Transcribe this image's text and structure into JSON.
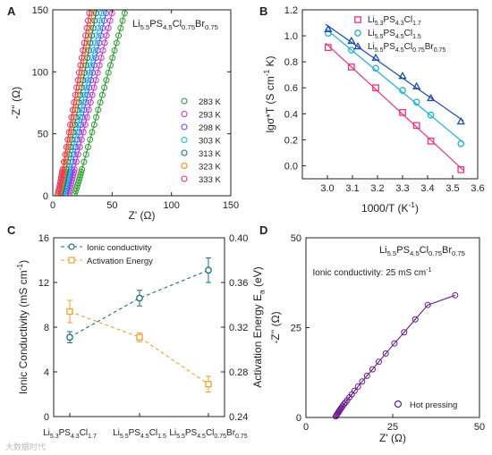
{
  "chart_data": [
    {
      "panel": "A",
      "type": "scatter",
      "xlabel": "Z' (Ω)",
      "ylabel": "-Z'' (Ω)",
      "xlim": [
        0,
        150
      ],
      "ylim": [
        0,
        150
      ],
      "xticks": [
        "0",
        "50",
        "100",
        "150"
      ],
      "yticks": [
        "0",
        "50",
        "100",
        "150"
      ],
      "annotation": "Li5.5PS4.5Cl0.75Br0.75",
      "legend_position": "center-right",
      "series": [
        {
          "name": "283 K",
          "color": "#2e9e33",
          "x0": 18.5,
          "slope": 3.5
        },
        {
          "name": "293 K",
          "color": "#cc33cc",
          "x0": 13.0,
          "slope": 4.0
        },
        {
          "name": "298 K",
          "color": "#5555ee",
          "x0": 10.5,
          "slope": 4.3
        },
        {
          "name": "303 K",
          "color": "#22b8e0",
          "x0": 9.0,
          "slope": 4.6
        },
        {
          "name": "313 K",
          "color": "#147a7a",
          "x0": 7.0,
          "slope": 5.0
        },
        {
          "name": "323 K",
          "color": "#f08a00",
          "x0": 5.5,
          "slope": 5.3
        },
        {
          "name": "333 K",
          "color": "#e8336e",
          "x0": 4.5,
          "slope": 5.6
        }
      ]
    },
    {
      "panel": "B",
      "type": "scatter",
      "xlabel": "1000/T (K-1)",
      "ylabel": "lgσ*T (S cm-1 K)",
      "xlim": [
        2.9,
        3.6
      ],
      "ylim": [
        -0.1,
        1.2
      ],
      "xticks": [
        "3.0",
        "3.1",
        "3.2",
        "3.3",
        "3.4",
        "3.5",
        "3.6"
      ],
      "yticks": [
        "0.0",
        "0.2",
        "0.4",
        "0.6",
        "0.8",
        "1.0",
        "1.2"
      ],
      "legend_position": "top-right",
      "x": [
        3.003,
        3.096,
        3.193,
        3.3,
        3.356,
        3.413,
        3.533
      ],
      "series": [
        {
          "name": "Li5.3PS4.3Cl1.7",
          "color": "#e8337a",
          "marker": "square",
          "values": [
            0.91,
            0.76,
            0.6,
            0.41,
            0.31,
            0.19,
            -0.03
          ]
        },
        {
          "name": "Li5.5PS4.5Cl1.5",
          "color": "#1fb0d8",
          "marker": "circle",
          "values": [
            1.02,
            0.89,
            0.75,
            0.58,
            0.49,
            0.39,
            0.17
          ]
        },
        {
          "name": "Li5.5PS4.5Cl0.75Br0.75",
          "color": "#1f4aa8",
          "marker": "triangle",
          "values": [
            1.05,
            0.96,
            0.83,
            0.69,
            0.61,
            0.52,
            0.34
          ]
        }
      ]
    },
    {
      "panel": "C",
      "type": "line",
      "ylabel": "Ionic Conductivity (mS cm-1)",
      "ylabel_right": "Activation Energy Ea (eV)",
      "ylim": [
        0,
        16
      ],
      "ylim_right": [
        0.24,
        0.4
      ],
      "yticks": [
        "0",
        "4",
        "8",
        "12",
        "16"
      ],
      "yticks_right": [
        "0.24",
        "0.28",
        "0.32",
        "0.36",
        "0.40"
      ],
      "categories": [
        "Li5.3PS4.3Cl1.7",
        "Li5.5PS4.5Cl1.5",
        "Li5.5PS4.5Cl0.75Br0.75"
      ],
      "legend_position": "top-left",
      "series": [
        {
          "name": "Ionic conductivity",
          "color": "#1b6e80",
          "axis": "left",
          "values": [
            7.1,
            10.6,
            13.1
          ],
          "errors": [
            0.5,
            0.7,
            1.1
          ]
        },
        {
          "name": "Activation Energy",
          "color": "#f0a030",
          "axis": "right",
          "values": [
            0.334,
            0.311,
            0.269
          ],
          "errors": [
            0.01,
            0.004,
            0.007
          ]
        }
      ]
    },
    {
      "panel": "D",
      "type": "scatter",
      "xlabel": "Z' (Ω)",
      "ylabel": "-Z'' (Ω)",
      "xlim": [
        0,
        50
      ],
      "ylim": [
        0,
        50
      ],
      "xticks": [
        "0",
        "25",
        "50"
      ],
      "yticks": [
        "0",
        "25",
        "50"
      ],
      "annotation": "Li5.5PS4.5Cl0.75Br0.75",
      "annotation2": "Ionic conductivity: 25 mS cm-1",
      "legend_position": "bottom-right",
      "series": [
        {
          "name": "Hot pressing",
          "color": "#6a1b8a",
          "x": [
            8.6,
            8.8,
            9.0,
            9.2,
            9.4,
            9.6,
            9.8,
            10.0,
            10.3,
            10.6,
            11.0,
            11.4,
            11.9,
            12.5,
            13.2,
            14.0,
            15.0,
            16.2,
            17.6,
            19.2,
            21.0,
            23.0,
            25.5,
            28.3,
            31.5,
            35.1,
            43.0
          ],
          "values": [
            0.3,
            0.6,
            0.9,
            1.2,
            1.5,
            1.8,
            2.1,
            2.4,
            2.8,
            3.2,
            3.7,
            4.2,
            4.8,
            5.6,
            6.4,
            7.4,
            8.6,
            10.0,
            11.6,
            13.4,
            15.5,
            17.8,
            20.6,
            23.7,
            27.3,
            31.3,
            34.0
          ]
        }
      ]
    }
  ],
  "panels": {
    "a": {
      "letter": "A",
      "title_parts": [
        "Li",
        "5.5",
        "PS",
        "4.5",
        "Cl",
        "0.75",
        "Br",
        "0.75"
      ]
    },
    "b": {
      "letter": "B"
    },
    "c": {
      "letter": "C"
    },
    "d": {
      "letter": "D",
      "title_parts": [
        "Li",
        "5.5",
        "PS",
        "4.5",
        "Cl",
        "0.75",
        "Br",
        "0.75"
      ],
      "note": "Ionic conductivity: 25 mS cm",
      "note_sup": "-1"
    }
  },
  "labels": {
    "a_ylabel": "-Z'' (Ω)",
    "a_xlabel": "Z' (Ω)",
    "b_ylabel_main": "lgσ*T (S cm",
    "b_ylabel_sup": "-1",
    "b_ylabel_tail": " K)",
    "b_xlabel_main": "1000/T (K",
    "b_xlabel_sup": "-1",
    "b_xlabel_tail": ")",
    "c_ylabel_main": "Ionic Conductivity (mS cm",
    "c_ylabel_sup": "-1",
    "c_ylabel_tail": ")",
    "c_ylabel_right_main": "Activation Energy E",
    "c_ylabel_right_sub": "a",
    "c_ylabel_right_tail": " (eV)",
    "d_ylabel": "-Z'' (Ω)",
    "d_xlabel": "Z' (Ω)"
  },
  "legend_b": [
    {
      "parts": [
        "Li",
        "5.3",
        "PS",
        "4.3",
        "Cl",
        "1.7"
      ]
    },
    {
      "parts": [
        "Li",
        "5.5",
        "PS",
        "4.5",
        "Cl",
        "1.5"
      ]
    },
    {
      "parts": [
        "Li",
        "5.5",
        "PS",
        "4.5",
        "Cl",
        "0.75",
        "Br",
        "0.75"
      ]
    }
  ],
  "c_categories_parts": [
    [
      "Li",
      "5.3",
      "PS",
      "4.3",
      "Cl",
      "1.7"
    ],
    [
      "Li",
      "5.5",
      "PS",
      "4.5",
      "Cl",
      "1.5"
    ],
    [
      "Li",
      "5.5",
      "PS",
      "4.5",
      "Cl",
      "0.75",
      "Br",
      "0.75"
    ]
  ],
  "watermark": "大数据时代"
}
